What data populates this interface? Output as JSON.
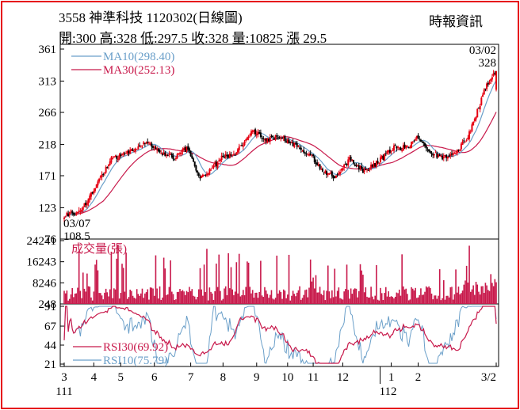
{
  "header": {
    "title": "3558  神準科技 1120302(日線圖)",
    "stats": "開:300 高:328 低:297.5 收:328 量:10825 漲 29.5",
    "source": "時報資訊"
  },
  "colors": {
    "frame": "#e60012",
    "up": "#e60012",
    "down": "#000000",
    "ma10": "#6a9fc9",
    "ma30": "#c8194b",
    "volume": "#c8194b",
    "rsi30": "#c8194b",
    "rsi10": "#6a9fc9"
  },
  "chart_data": [
    {
      "type": "candlestick",
      "panel": "price",
      "yticks": [
        76,
        123,
        171,
        218,
        266,
        313,
        361
      ],
      "ylim": [
        76,
        361
      ],
      "series": [
        {
          "name": "MA10(298.40)",
          "color": "#6a9fc9"
        },
        {
          "name": "MA30(252.13)",
          "color": "#c8194b"
        }
      ],
      "annotations": {
        "low_date": "03/07",
        "low_value": "108.5",
        "high_date": "03/02",
        "high_value": "328"
      },
      "keypoints_close": [
        [
          0,
          112
        ],
        [
          12,
          118
        ],
        [
          22,
          150
        ],
        [
          35,
          195
        ],
        [
          48,
          205
        ],
        [
          60,
          222
        ],
        [
          72,
          205
        ],
        [
          82,
          198
        ],
        [
          92,
          213
        ],
        [
          100,
          168
        ],
        [
          108,
          178
        ],
        [
          118,
          200
        ],
        [
          128,
          205
        ],
        [
          140,
          240
        ],
        [
          150,
          225
        ],
        [
          160,
          230
        ],
        [
          170,
          218
        ],
        [
          182,
          205
        ],
        [
          192,
          178
        ],
        [
          202,
          168
        ],
        [
          212,
          195
        ],
        [
          222,
          178
        ],
        [
          232,
          190
        ],
        [
          245,
          213
        ],
        [
          255,
          213
        ],
        [
          262,
          228
        ],
        [
          272,
          205
        ],
        [
          282,
          198
        ],
        [
          292,
          207
        ],
        [
          300,
          230
        ],
        [
          307,
          268
        ],
        [
          313,
          302
        ],
        [
          318,
          320
        ],
        [
          321,
          328
        ]
      ],
      "last_ma10": 298.4,
      "last_ma30": 252.13
    },
    {
      "type": "bar",
      "panel": "volume",
      "label": "成交量(張)",
      "yticks": [
        248,
        8246,
        16243,
        24241
      ],
      "ylim": [
        248,
        24241
      ]
    },
    {
      "type": "line",
      "panel": "rsi",
      "yticks": [
        21,
        44,
        67,
        91
      ],
      "ylim": [
        21,
        91
      ],
      "series": [
        {
          "name": "RSI30(69.92)",
          "color": "#c8194b",
          "last": 69.92
        },
        {
          "name": "RSI10(75.79)",
          "color": "#6a9fc9",
          "last": 75.79
        }
      ]
    }
  ],
  "xaxis": {
    "months": [
      "3",
      "4",
      "5",
      "6",
      "7",
      "8",
      "9",
      "10",
      "11",
      "12",
      "1",
      "2",
      "3/2"
    ],
    "month_days": [
      0,
      22,
      42,
      67,
      94,
      118,
      143,
      166,
      185,
      207,
      243,
      263,
      321
    ],
    "years": [
      "111",
      "112"
    ]
  }
}
